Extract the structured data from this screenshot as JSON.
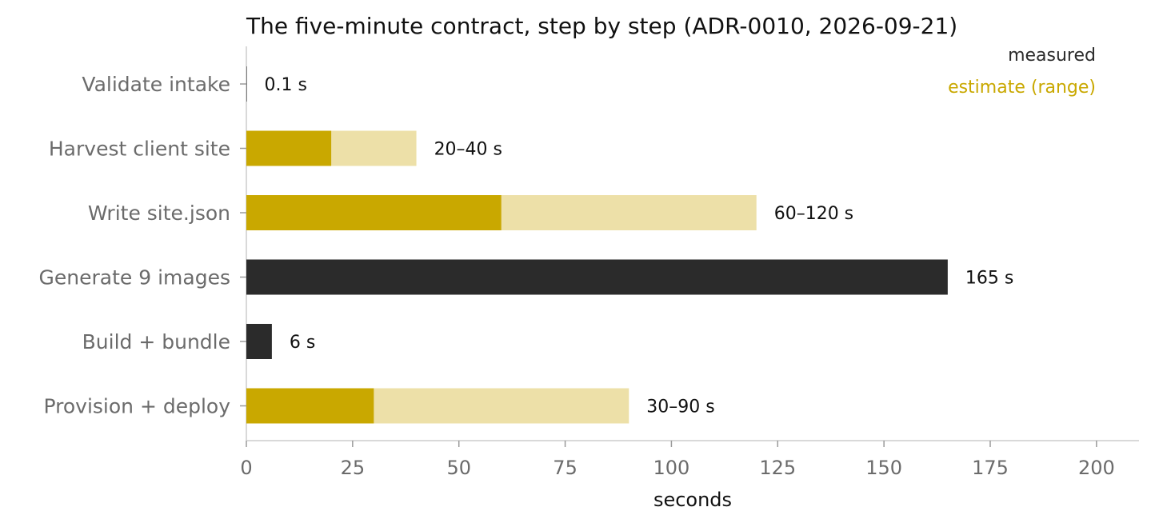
{
  "chart_data": {
    "type": "bar",
    "orientation": "horizontal",
    "title": "The five-minute contract, step by step (ADR-0010, 2026-09-21)",
    "xlabel": "seconds",
    "ylabel": "",
    "xlim": [
      0,
      210
    ],
    "x_ticks": [
      0,
      25,
      50,
      75,
      100,
      125,
      150,
      175,
      200
    ],
    "grid": false,
    "legend_position": "top-right",
    "legend": [
      {
        "label": "measured",
        "color": "#2b2b2b"
      },
      {
        "label": "estimate (range)",
        "color": "#c9a800"
      }
    ],
    "categories": [
      "Validate intake",
      "Harvest client site",
      "Write site.json",
      "Generate 9 images",
      "Build + bundle",
      "Provision + deploy"
    ],
    "bars": [
      {
        "category": "Validate intake",
        "kind": "measured",
        "value": 0.1,
        "label": "0.1 s"
      },
      {
        "category": "Harvest client site",
        "kind": "estimate",
        "low": 20,
        "high": 40,
        "label": "20–40 s"
      },
      {
        "category": "Write site.json",
        "kind": "estimate",
        "low": 60,
        "high": 120,
        "label": "60–120 s"
      },
      {
        "category": "Generate 9 images",
        "kind": "measured",
        "value": 165,
        "label": "165 s"
      },
      {
        "category": "Build + bundle",
        "kind": "measured",
        "value": 6,
        "label": "6 s"
      },
      {
        "category": "Provision + deploy",
        "kind": "estimate",
        "low": 30,
        "high": 90,
        "label": "30–90 s"
      }
    ],
    "colors": {
      "measured": "#2b2b2b",
      "estimate_low": "#c9a800",
      "estimate_range": "#ede0a8",
      "axis": "#d9d9d9",
      "tick_text": "#6b6b6b"
    }
  }
}
